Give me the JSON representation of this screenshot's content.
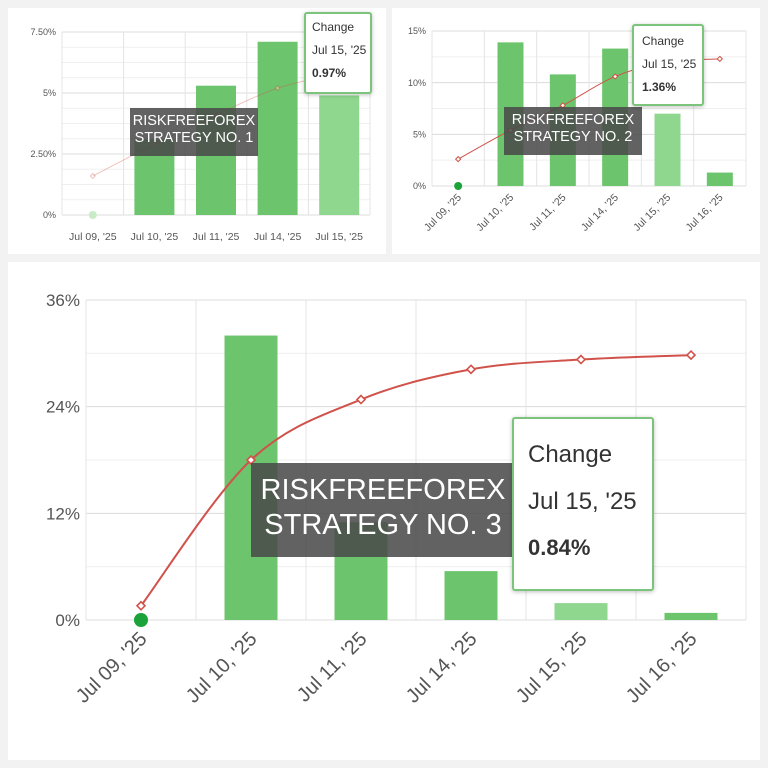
{
  "charts": [
    {
      "watermark": {
        "line1": "RISKFREEFOREX",
        "line2": "STRATEGY  NO. 1"
      },
      "tooltip": {
        "title": "Change",
        "date": "Jul 15, '25",
        "value": "0.97%"
      }
    },
    {
      "watermark": {
        "line1": "RISKFREEFOREX",
        "line2": "STRATEGY  NO. 2"
      },
      "tooltip": {
        "title": "Change",
        "date": "Jul 15, '25",
        "value": "1.36%"
      }
    },
    {
      "watermark": {
        "line1": "RISKFREEFOREX",
        "line2": "STRATEGY  NO. 3"
      },
      "tooltip": {
        "title": "Change",
        "date": "Jul 15, '25",
        "value": "0.84%"
      }
    }
  ],
  "colors": {
    "bar": "#6cc56c",
    "bar_highlight": "#8fd68f",
    "line": "#d0524a",
    "start_dot": "#1aa33a",
    "grid": "#e4e4e4"
  },
  "chart_data": [
    {
      "type": "bar",
      "categories": [
        "Jul 09, '25",
        "Jul 10, '25",
        "Jul 11, '25",
        "Jul 14, '25",
        "Jul 15, '25"
      ],
      "series": [
        {
          "type": "bar",
          "values": [
            0,
            3.1,
            5.3,
            7.1,
            4.9
          ]
        },
        {
          "type": "line",
          "values": [
            1.6,
            2.9,
            4.1,
            5.2,
            5.8
          ]
        }
      ],
      "ylim": [
        0,
        7.5
      ],
      "yticks": [
        0,
        2.5,
        5,
        7.5
      ],
      "ytick_labels": [
        "0%",
        "2.50%",
        "5%",
        "7.50%"
      ],
      "highlight_index": 4,
      "grid": true
    },
    {
      "type": "bar",
      "categories": [
        "Jul 09, '25",
        "Jul 10, '25",
        "Jul 11, '25",
        "Jul 14, '25",
        "Jul 15, '25",
        "Jul 16, '25"
      ],
      "series": [
        {
          "type": "bar",
          "values": [
            0,
            13.9,
            10.8,
            13.3,
            7.0,
            1.3
          ]
        },
        {
          "type": "line",
          "values": [
            2.6,
            5.4,
            7.8,
            10.6,
            12.0,
            12.3
          ]
        }
      ],
      "ylim": [
        0,
        15
      ],
      "yticks": [
        0,
        5,
        10,
        15
      ],
      "ytick_labels": [
        "0%",
        "5%",
        "10%",
        "15%"
      ],
      "highlight_index": 4,
      "grid": true
    },
    {
      "type": "bar",
      "categories": [
        "Jul 09, '25",
        "Jul 10, '25",
        "Jul 11, '25",
        "Jul 14, '25",
        "Jul 15, '25",
        "Jul 16, '25"
      ],
      "series": [
        {
          "type": "bar",
          "values": [
            0,
            32,
            11,
            5.5,
            1.9,
            0.8
          ]
        },
        {
          "type": "line",
          "values": [
            1.6,
            18,
            24.8,
            28.2,
            29.3,
            29.8
          ]
        }
      ],
      "ylim": [
        0,
        36
      ],
      "yticks": [
        0,
        12,
        24,
        36
      ],
      "ytick_labels": [
        "0%",
        "12%",
        "24%",
        "36%"
      ],
      "highlight_index": 4,
      "grid": true
    }
  ]
}
